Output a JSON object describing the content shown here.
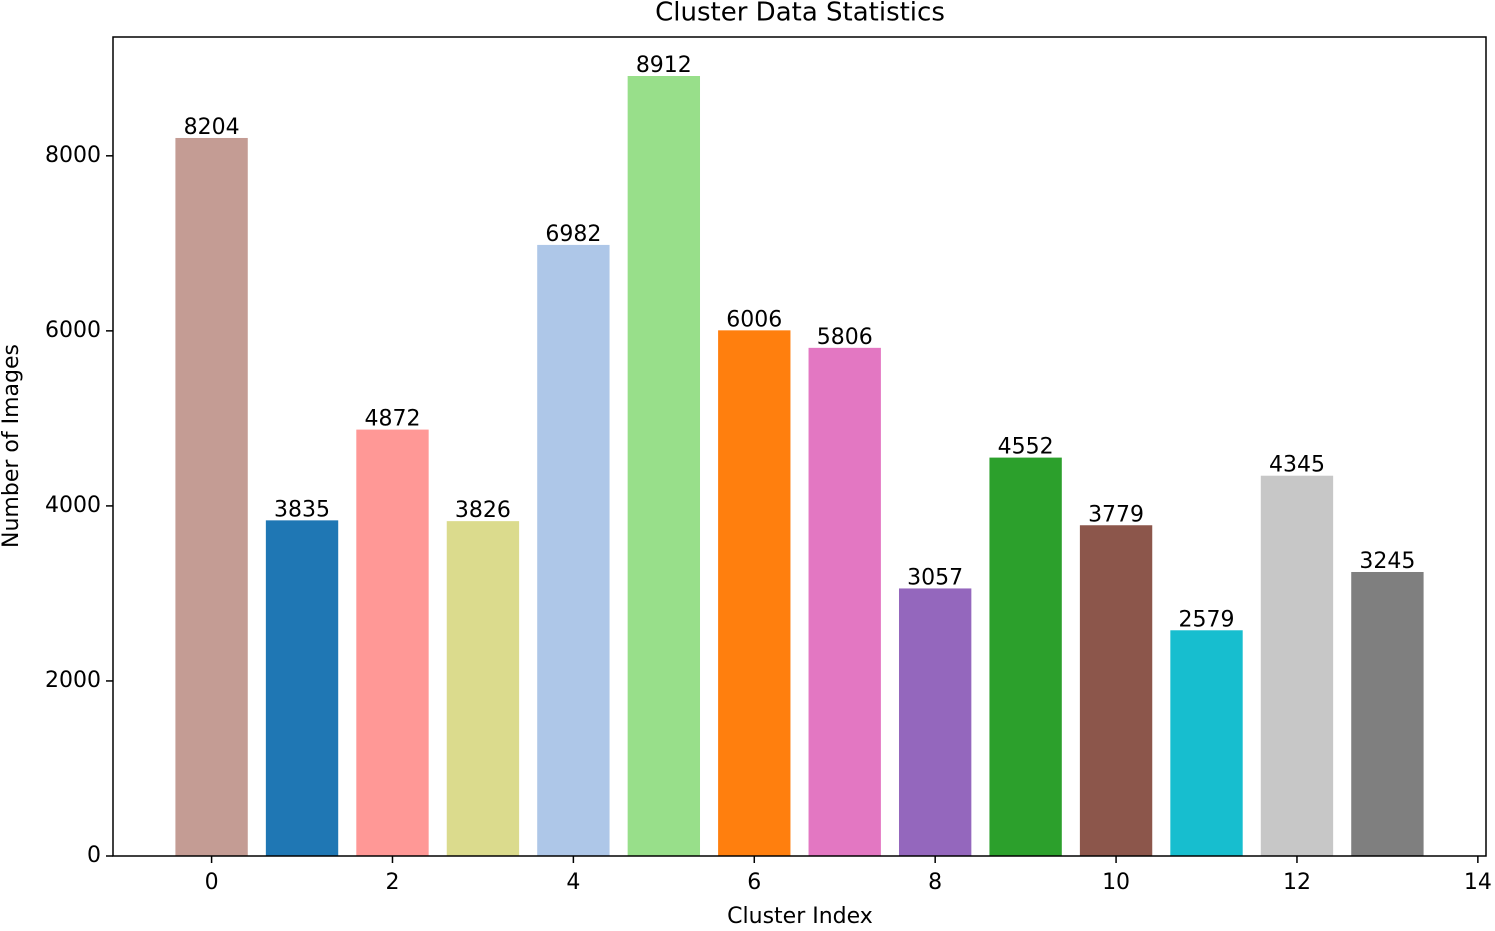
{
  "chart_data": {
    "type": "bar",
    "title": "Cluster Data Statistics",
    "x_label": "Cluster Index",
    "y_label": "Number of Images",
    "x": [
      0,
      1,
      2,
      3,
      4,
      5,
      6,
      7,
      8,
      9,
      10,
      11,
      12,
      13
    ],
    "values": [
      8204,
      3835,
      4872,
      3826,
      6982,
      8912,
      6006,
      5806,
      3057,
      4552,
      3779,
      2579,
      4345,
      3245
    ],
    "colors": [
      "#c49c94",
      "#1f77b4",
      "#ff9896",
      "#dbdb8d",
      "#aec7e8",
      "#98df8a",
      "#ff7f0e",
      "#e377c2",
      "#9467bd",
      "#2ca02c",
      "#8c564b",
      "#17becf",
      "#c7c7c7",
      "#7f7f7f"
    ],
    "bar_width": 0.8,
    "xlim": [
      -1.09,
      14.09
    ],
    "xticks": [
      0,
      2,
      4,
      6,
      8,
      10,
      12,
      14
    ],
    "ylim": [
      0,
      9357.6
    ],
    "yticks": [
      0,
      2000,
      4000,
      6000,
      8000
    ],
    "grid": false
  }
}
